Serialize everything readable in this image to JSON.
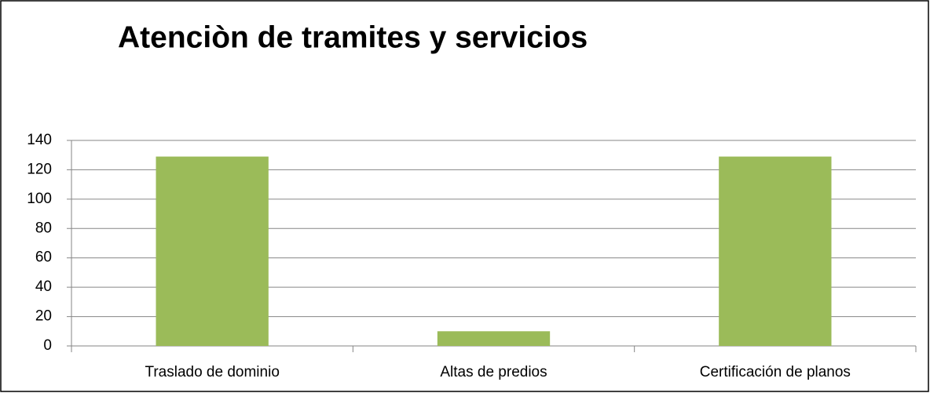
{
  "chart_data": {
    "type": "bar",
    "title": "Atenciòn de tramites y servicios",
    "categories": [
      "Traslado de dominio",
      "Altas de predios",
      "Certificación de planos"
    ],
    "values": [
      129,
      10,
      129
    ],
    "color": "#9bbb59",
    "ylim": [
      0,
      140
    ],
    "yticks": [
      0,
      20,
      40,
      60,
      80,
      100,
      120,
      140
    ],
    "grid": true
  }
}
